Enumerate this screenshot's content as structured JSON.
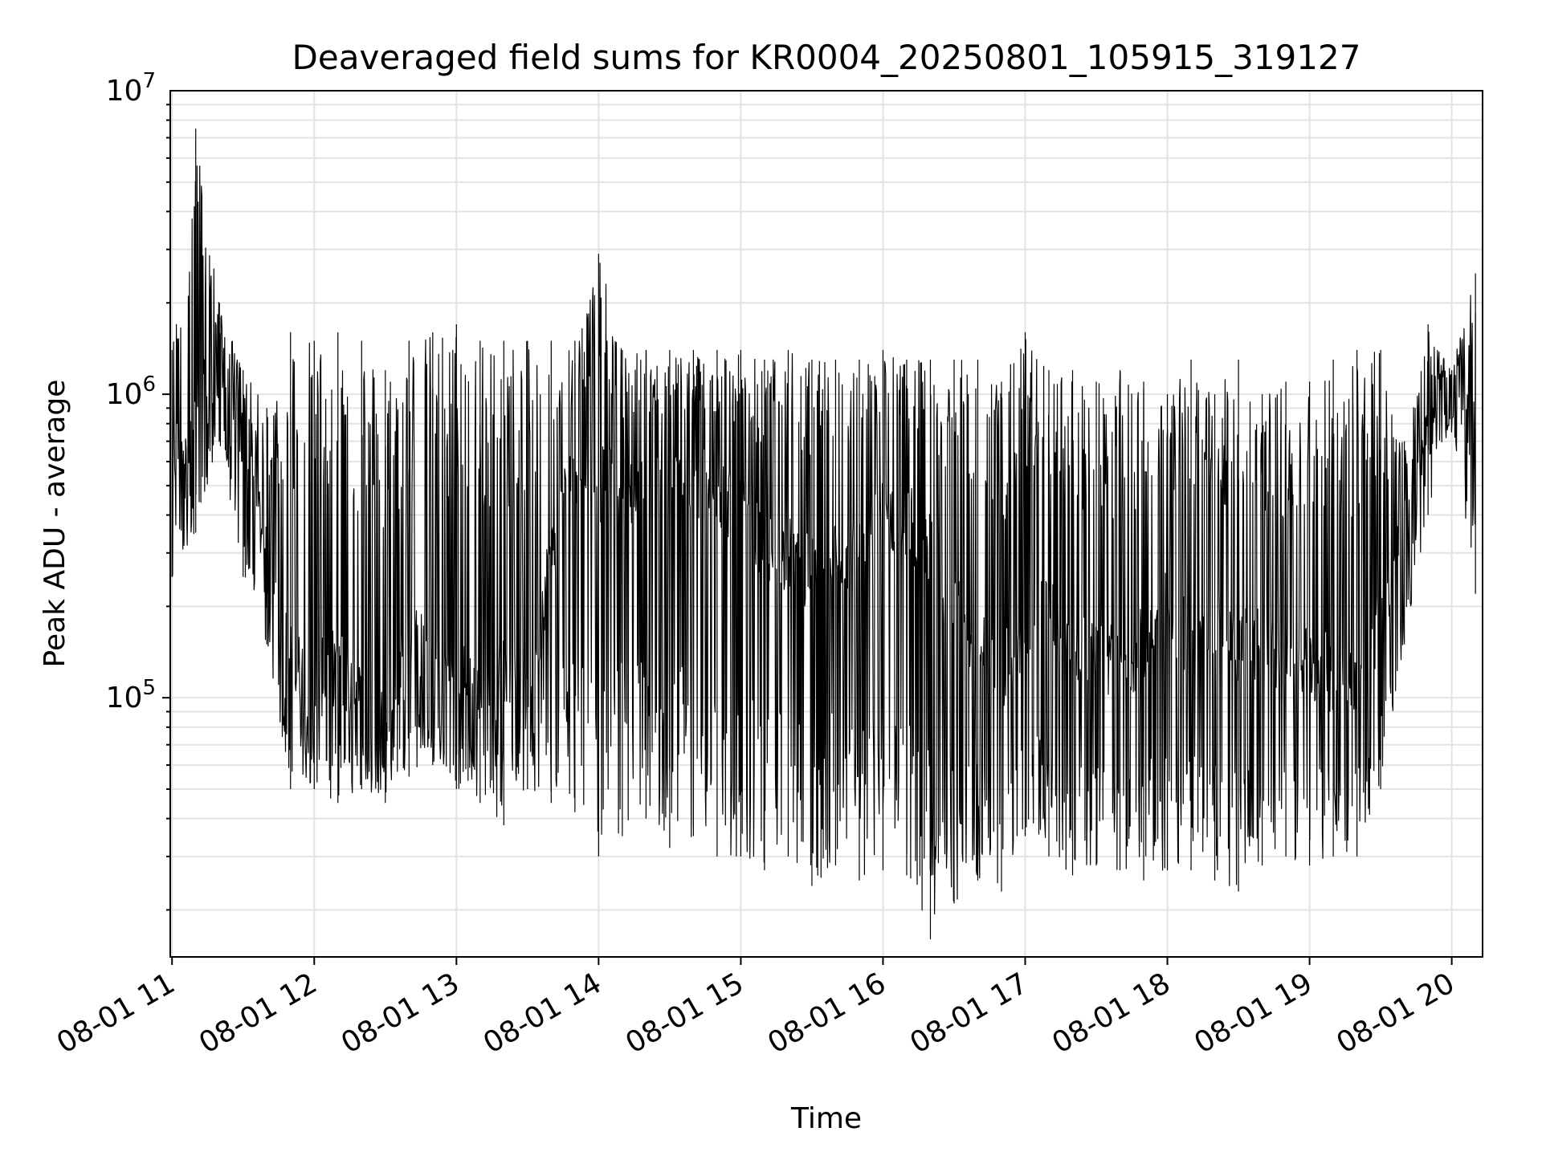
{
  "chart_data": {
    "type": "line",
    "title": "Deaveraged field sums for KR0004_20250801_105915_319127",
    "xlabel": "Time",
    "ylabel": "Peak ADU - average",
    "yscale": "log",
    "ylim": [
      14000,
      10000000
    ],
    "xlim": [
      "2025-08-01 10:59:15",
      "2025-08-01 20:13:00"
    ],
    "grid": true,
    "x_ticks": [
      "08-01 11",
      "08-01 12",
      "08-01 13",
      "08-01 14",
      "08-01 15",
      "08-01 16",
      "08-01 17",
      "08-01 18",
      "08-01 19",
      "08-01 20"
    ],
    "y_ticks": [
      {
        "value": 100000,
        "base": "10",
        "exp": "5"
      },
      {
        "value": 1000000,
        "base": "10",
        "exp": "6"
      },
      {
        "value": 10000000,
        "base": "10",
        "exp": "7"
      }
    ],
    "line_color": "#000000",
    "series": [
      {
        "x": [
          "2025-08-01 11:00",
          "2025-08-01 11:10",
          "2025-08-01 11:20",
          "2025-08-01 11:30",
          "2025-08-01 11:40",
          "2025-08-01 11:50",
          "2025-08-01 12:00",
          "2025-08-01 12:10",
          "2025-08-01 12:20",
          "2025-08-01 12:30",
          "2025-08-01 12:40",
          "2025-08-01 12:50",
          "2025-08-01 13:00",
          "2025-08-01 13:10",
          "2025-08-01 13:20",
          "2025-08-01 13:30",
          "2025-08-01 13:40",
          "2025-08-01 13:50",
          "2025-08-01 14:00",
          "2025-08-01 14:10",
          "2025-08-01 14:20",
          "2025-08-01 14:30",
          "2025-08-01 14:40",
          "2025-08-01 14:50",
          "2025-08-01 15:00",
          "2025-08-01 15:10",
          "2025-08-01 15:20",
          "2025-08-01 15:30",
          "2025-08-01 15:40",
          "2025-08-01 15:50",
          "2025-08-01 16:00",
          "2025-08-01 16:10",
          "2025-08-01 16:20",
          "2025-08-01 16:30",
          "2025-08-01 16:40",
          "2025-08-01 16:50",
          "2025-08-01 17:00",
          "2025-08-01 17:10",
          "2025-08-01 17:20",
          "2025-08-01 17:30",
          "2025-08-01 17:40",
          "2025-08-01 17:50",
          "2025-08-01 18:00",
          "2025-08-01 18:10",
          "2025-08-01 18:20",
          "2025-08-01 18:30",
          "2025-08-01 18:40",
          "2025-08-01 18:50",
          "2025-08-01 19:00",
          "2025-08-01 19:10",
          "2025-08-01 19:20",
          "2025-08-01 19:30",
          "2025-08-01 19:40",
          "2025-08-01 19:50",
          "2025-08-01 20:00",
          "2025-08-01 20:10"
        ],
        "y_center": [
          600000,
          900000,
          1100000,
          700000,
          300000,
          130000,
          110000,
          130000,
          100000,
          80000,
          150000,
          140000,
          120000,
          100000,
          120000,
          100000,
          300000,
          600000,
          500000,
          500000,
          450000,
          500000,
          500000,
          500000,
          400000,
          300000,
          300000,
          250000,
          300000,
          300000,
          400000,
          400000,
          300000,
          200000,
          150000,
          120000,
          150000,
          200000,
          130000,
          150000,
          120000,
          150000,
          200000,
          150000,
          180000,
          150000,
          150000,
          130000,
          130000,
          120000,
          110000,
          180000,
          400000,
          800000,
          1000000,
          700000
        ],
        "y_high": [
          1400000,
          7500000,
          2000000,
          1200000,
          900000,
          1600000,
          1500000,
          1600000,
          1500000,
          1200000,
          1500000,
          1600000,
          1700000,
          1500000,
          1500000,
          1500000,
          1500000,
          1500000,
          2900000,
          1400000,
          1400000,
          1400000,
          1400000,
          1400000,
          1400000,
          1300000,
          1400000,
          1300000,
          1300000,
          1300000,
          1400000,
          1300000,
          1300000,
          1300000,
          1300000,
          1100000,
          1600000,
          1200000,
          1200000,
          1100000,
          1200000,
          1100000,
          1000000,
          1300000,
          1000000,
          1300000,
          1000000,
          1100000,
          1100000,
          1300000,
          1400000,
          1400000,
          700000,
          1700000,
          1200000,
          2500000
        ],
        "y_low": [
          250000,
          350000,
          700000,
          250000,
          150000,
          50000,
          50000,
          45000,
          50000,
          45000,
          55000,
          60000,
          50000,
          45000,
          38000,
          50000,
          45000,
          42000,
          30000,
          35000,
          40000,
          32000,
          35000,
          30000,
          30000,
          27000,
          30000,
          24000,
          28000,
          25000,
          27000,
          26000,
          16000,
          21000,
          25000,
          23000,
          35000,
          30000,
          26000,
          28000,
          27000,
          25000,
          27000,
          27000,
          25000,
          23000,
          28000,
          30000,
          28000,
          30000,
          30000,
          50000,
          150000,
          400000,
          850000,
          220000
        ]
      }
    ]
  }
}
